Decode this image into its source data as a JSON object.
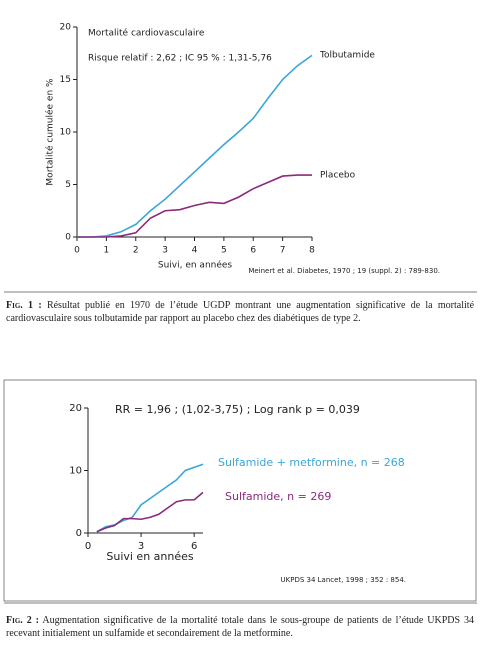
{
  "chart_data": [
    {
      "type": "line",
      "title": "Mortalité cardiovasculaire",
      "annotation": "Risque relatif : 2,62 ; IC 95 % : 1,31-5,76",
      "y_label": "Mortalité cumulée en %",
      "x_label": "Suivi, en années",
      "x": [
        0,
        0.5,
        1,
        1.5,
        2,
        2.5,
        3,
        3.5,
        4,
        4.5,
        5,
        5.5,
        6,
        6.5,
        7,
        7.5,
        8
      ],
      "series": [
        {
          "name": "Tolbutamide",
          "color": "#3aa6d8",
          "values": [
            0,
            0,
            0.1,
            0.5,
            1.2,
            2.5,
            3.6,
            4.9,
            6.2,
            7.5,
            8.8,
            10,
            11.3,
            13.2,
            15,
            16.3,
            17.3
          ]
        },
        {
          "name": "Placebo",
          "color": "#8b2a7c",
          "values": [
            0,
            0,
            0,
            0.1,
            0.4,
            1.8,
            2.5,
            2.6,
            3,
            3.3,
            3.2,
            3.8,
            4.6,
            5.2,
            5.8,
            5.9,
            5.9
          ]
        }
      ],
      "xlim": [
        0,
        8
      ],
      "xticks": [
        0,
        1,
        2,
        3,
        4,
        5,
        6,
        7,
        8
      ],
      "ylim": [
        0,
        20
      ],
      "yticks": [
        0,
        5,
        10,
        15,
        20
      ]
    },
    {
      "type": "line",
      "annotation": "RR = 1,96 ; (1,02-3,75) ; Log rank p = 0,039",
      "x_label": "Suivi en années",
      "x": [
        0.5,
        1,
        1.5,
        2,
        2.5,
        3,
        3.5,
        4,
        4.5,
        5,
        5.5,
        6,
        6.5
      ],
      "series": [
        {
          "name": "Sulfamide + metformine, n = 268",
          "color": "#3aa6d8",
          "values": [
            0.2,
            1,
            1.3,
            2,
            2.5,
            4.5,
            5.5,
            6.5,
            7.5,
            8.5,
            10,
            10.5,
            11
          ]
        },
        {
          "name": "Sulfamide, n = 269",
          "color": "#8b2a7c",
          "values": [
            0.2,
            0.8,
            1.2,
            2.3,
            2.3,
            2.2,
            2.5,
            3,
            4,
            5,
            5.3,
            5.3,
            6.5
          ]
        }
      ],
      "xlim": [
        0,
        6.5
      ],
      "xticks": [
        0,
        3,
        6
      ],
      "ylim": [
        0,
        20
      ],
      "yticks": [
        0,
        10,
        20
      ]
    }
  ],
  "figures": [
    {
      "source": "Meinert et al. Diabetes, 1970 ; 19 (suppl. 2) : 789-830.",
      "caption_label": "Fig. 1 :",
      "caption_text": "Résultat publié en 1970 de l’étude UGDP montrant une augmentation significative de la mortalité cardiovasculaire sous tolbutamide par rapport au placebo chez des diabétiques de type 2."
    },
    {
      "source": "UKPDS 34 Lancet, 1998 ; 352 : 854.",
      "caption_label": "Fig. 2 :",
      "caption_text": "Augmentation significative de la mortalité totale dans le sous-groupe de patients de l’étude UKPDS 34 recevant initialement un sulfamide et secondairement de la metformine."
    }
  ]
}
